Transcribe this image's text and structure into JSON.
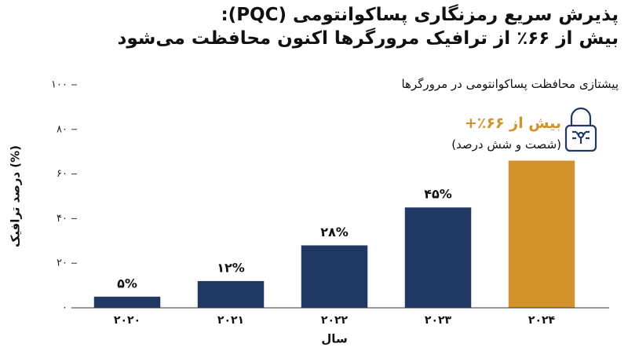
{
  "chart_data": {
    "type": "bar",
    "title": "پذیرش سریع رمزنگاری پساکوانتومی (PQC):",
    "title_line_2": "بیش از ۶۶٪ از ترافیک مرورگرها اکنون محافظت می‌شود",
    "subtitle": "پیشتازی محافظت پساکوانتومی در مرورگرها",
    "y_label": "درصد ترافیک (%)",
    "x_label": "سال",
    "annotation": "بیش از ۶۶٪+",
    "annotation_note": "(شصت و شش درصد)",
    "categories": [
      "۲۰۲۰",
      "۲۰۲۱",
      "۲۰۲۲",
      "۲۰۲۳",
      "۲۰۲۴"
    ],
    "values": [
      5,
      12,
      28,
      45,
      66
    ],
    "value_labels": [
      "۵%",
      "۱۲%",
      "۲۸%",
      "۴۵%",
      null
    ],
    "colors": [
      "#1f3864",
      "#1f3864",
      "#1f3864",
      "#1f3864",
      "#d4922a"
    ],
    "ylim": [
      0,
      100
    ],
    "yticks": [
      {
        "value": 0,
        "label": "۰"
      },
      {
        "value": 20,
        "label": "۲۰"
      },
      {
        "value": 40,
        "label": "۴۰"
      },
      {
        "value": 60,
        "label": "۶۰"
      },
      {
        "value": 80,
        "label": "۸۰"
      },
      {
        "value": 100,
        "label": "۱۰۰"
      }
    ],
    "grid": false
  }
}
